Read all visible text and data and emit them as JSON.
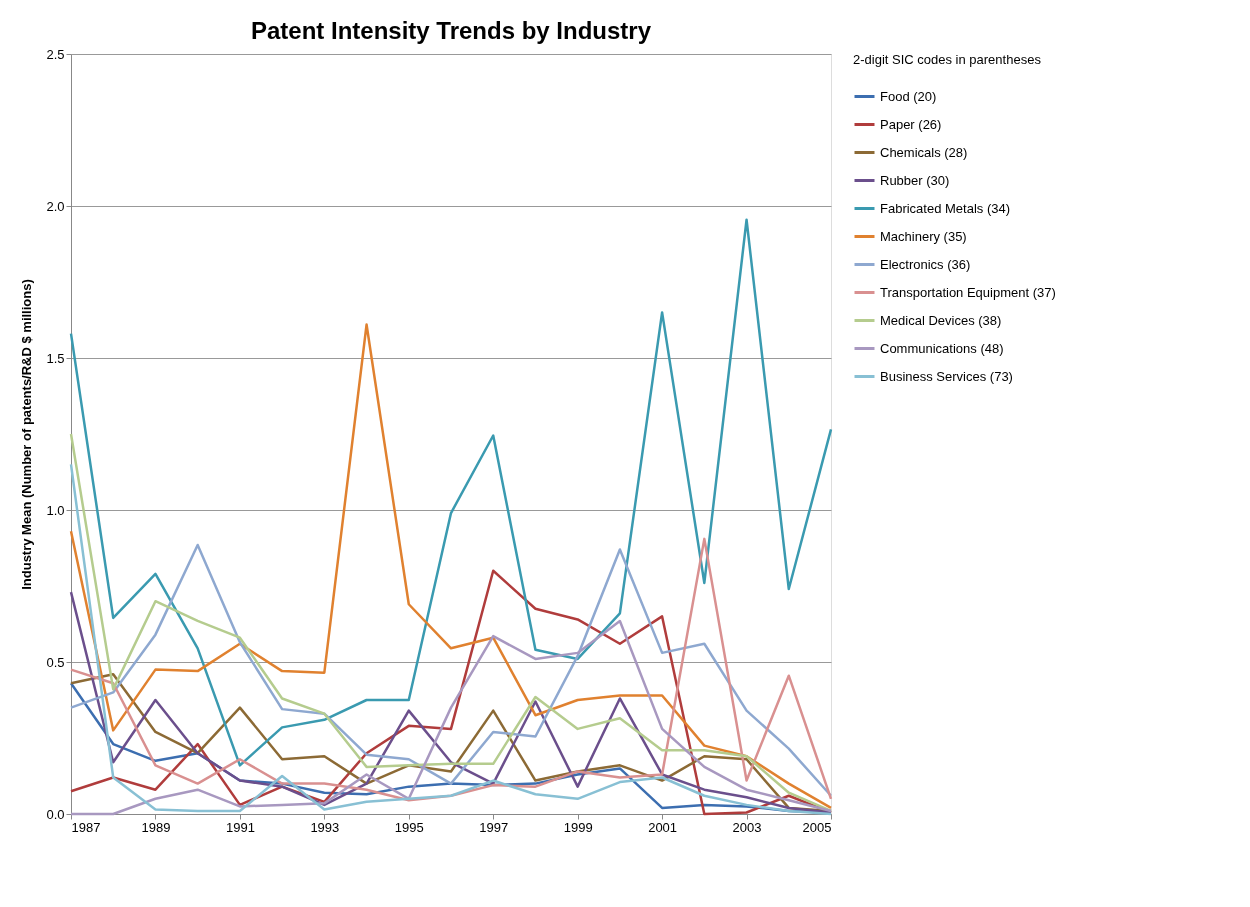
{
  "chart_data": {
    "type": "line",
    "title": "Patent Intensity Trends by Industry",
    "ylabel": "Industry Mean (Number of patents/R&D $ millions)",
    "legend_title": "2-digit SIC codes in parentheses",
    "legend": "right",
    "grid": "y",
    "line_style": "solid",
    "marker": "none",
    "x": [
      1987,
      1988,
      1989,
      1990,
      1991,
      1992,
      1993,
      1994,
      1995,
      1996,
      1997,
      1998,
      1999,
      2000,
      2001,
      2002,
      2003,
      2004,
      2005
    ],
    "xlim": [
      1987,
      2005
    ],
    "xticks": [
      1987,
      1989,
      1991,
      1993,
      1995,
      1997,
      1999,
      2001,
      2003,
      2005
    ],
    "ylim": [
      0,
      2.5
    ],
    "yticks": [
      {
        "value": 0,
        "label": "0.0"
      },
      0.5,
      {
        "value": 1,
        "label": "1.0"
      },
      1.5,
      {
        "value": 2,
        "label": "2.0"
      },
      2.5
    ],
    "series": [
      {
        "name": "Food (20)",
        "color": "#3c6eb0",
        "values": [
          0.43,
          0.23,
          0.175,
          0.2,
          0.11,
          0.1,
          0.07,
          0.065,
          0.09,
          0.1,
          0.095,
          0.1,
          0.13,
          0.15,
          0.02,
          0.03,
          0.025,
          0.01,
          0.005
        ]
      },
      {
        "name": "Paper (26)",
        "color": "#b03c3c",
        "values": [
          0.075,
          0.12,
          0.08,
          0.23,
          0.03,
          0.09,
          0.04,
          0.2,
          0.29,
          0.28,
          0.8,
          0.675,
          0.64,
          0.56,
          0.65,
          0.0,
          0.005,
          0.06,
          0.005
        ]
      },
      {
        "name": "Chemicals (28)",
        "color": "#8c6a35",
        "values": [
          0.43,
          0.46,
          0.27,
          0.2,
          0.35,
          0.18,
          0.19,
          0.1,
          0.16,
          0.14,
          0.34,
          0.11,
          0.14,
          0.16,
          0.11,
          0.19,
          0.18,
          0.02,
          0.01
        ]
      },
      {
        "name": "Rubber (30)",
        "color": "#6b4f8c",
        "values": [
          0.73,
          0.17,
          0.375,
          0.2,
          0.11,
          0.09,
          0.03,
          0.1,
          0.34,
          0.17,
          0.1,
          0.37,
          0.09,
          0.38,
          0.13,
          0.08,
          0.055,
          0.02,
          0.005
        ]
      },
      {
        "name": "Fabricated Metals  (34)",
        "color": "#3a9ab0",
        "values": [
          1.58,
          0.645,
          0.79,
          0.545,
          0.16,
          0.285,
          0.31,
          0.375,
          0.375,
          0.99,
          1.245,
          0.54,
          0.51,
          0.66,
          1.65,
          0.76,
          1.955,
          0.74,
          1.265
        ]
      },
      {
        "name": "Machinery (35)",
        "color": "#e0812f",
        "values": [
          0.93,
          0.275,
          0.475,
          0.47,
          0.56,
          0.47,
          0.465,
          1.61,
          0.69,
          0.545,
          0.58,
          0.325,
          0.375,
          0.39,
          0.39,
          0.225,
          0.19,
          0.1,
          0.02
        ]
      },
      {
        "name": "Electronics (36)",
        "color": "#8ea8d0",
        "values": [
          0.35,
          0.4,
          0.59,
          0.885,
          0.565,
          0.345,
          0.33,
          0.195,
          0.18,
          0.1,
          0.27,
          0.255,
          0.52,
          0.87,
          0.53,
          0.56,
          0.34,
          0.215,
          0.06
        ]
      },
      {
        "name": "Transportation Equipment (37)",
        "color": "#d99090",
        "values": [
          0.475,
          0.43,
          0.16,
          0.1,
          0.18,
          0.1,
          0.1,
          0.08,
          0.045,
          0.06,
          0.095,
          0.09,
          0.14,
          0.12,
          0.13,
          0.905,
          0.11,
          0.455,
          0.05
        ]
      },
      {
        "name": "Medical Devices (38)",
        "color": "#b5cc8e",
        "values": [
          1.25,
          0.41,
          0.7,
          0.635,
          0.58,
          0.38,
          0.33,
          0.155,
          0.16,
          0.165,
          0.165,
          0.385,
          0.28,
          0.315,
          0.21,
          0.21,
          0.19,
          0.07,
          0.01
        ]
      },
      {
        "name": "Communications (48)",
        "color": "#a898c0",
        "values": [
          0.0,
          0.0,
          0.05,
          0.08,
          0.025,
          0.03,
          0.035,
          0.13,
          0.05,
          0.35,
          0.585,
          0.51,
          0.53,
          0.635,
          0.28,
          0.155,
          0.08,
          0.045,
          0.01
        ]
      },
      {
        "name": "Business Services (73)",
        "color": "#88c0d4",
        "values": [
          1.15,
          0.12,
          0.015,
          0.01,
          0.01,
          0.125,
          0.015,
          0.04,
          0.05,
          0.06,
          0.11,
          0.065,
          0.05,
          0.105,
          0.12,
          0.06,
          0.03,
          0.01,
          0.0
        ]
      }
    ]
  }
}
